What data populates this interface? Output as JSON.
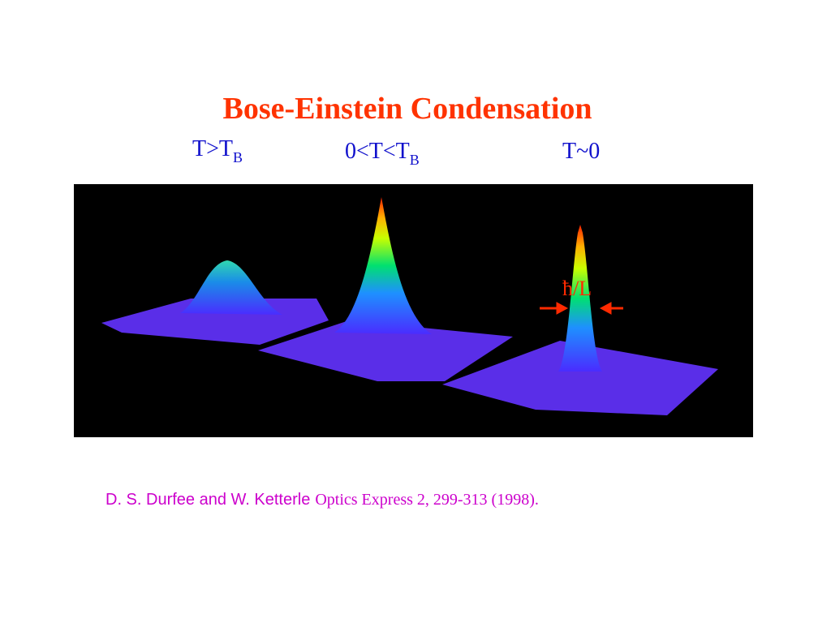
{
  "title": "Bose-Einstein Condensation",
  "labels": [
    {
      "main": "T>T",
      "sub": "B"
    },
    {
      "main": "0<T<T",
      "sub": "B"
    },
    {
      "main": "T~0"
    }
  ],
  "annotation": "ħ/L",
  "citation": {
    "authors": "D. S. Durfee and W. Ketterle",
    "reference": "Optics Express 2, 299-313 (1998)."
  }
}
